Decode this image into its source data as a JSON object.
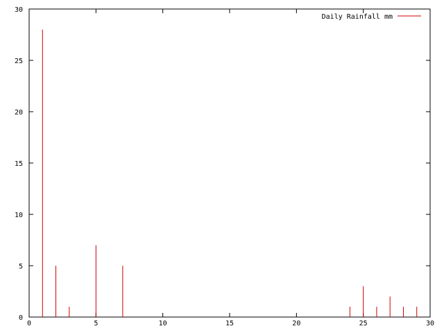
{
  "chart_data": {
    "type": "bar",
    "style": "impulses",
    "title": "",
    "xlabel": "",
    "ylabel": "",
    "xlim": [
      0,
      30
    ],
    "ylim": [
      0,
      30
    ],
    "xticks": [
      0,
      5,
      10,
      15,
      20,
      25,
      30
    ],
    "yticks": [
      0,
      5,
      10,
      15,
      20,
      25,
      30
    ],
    "grid": false,
    "legend_position": "top-right",
    "series": [
      {
        "name": "Daily Rainfall mm",
        "color": "#cc0000",
        "points": [
          {
            "x": 1,
            "y": 28
          },
          {
            "x": 2,
            "y": 5
          },
          {
            "x": 3,
            "y": 1
          },
          {
            "x": 5,
            "y": 7
          },
          {
            "x": 7,
            "y": 5
          },
          {
            "x": 24,
            "y": 1
          },
          {
            "x": 25,
            "y": 3
          },
          {
            "x": 26,
            "y": 1
          },
          {
            "x": 27,
            "y": 2
          },
          {
            "x": 28,
            "y": 1
          },
          {
            "x": 29,
            "y": 1
          }
        ]
      }
    ]
  }
}
